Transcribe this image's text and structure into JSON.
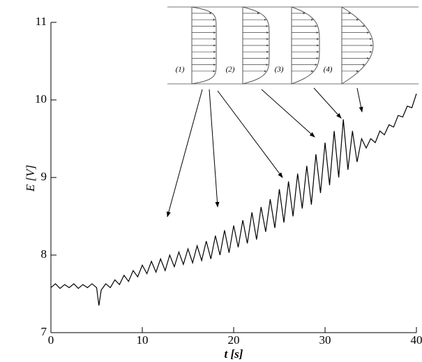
{
  "chart_data": {
    "type": "line",
    "xlabel": "t [s]",
    "ylabel": "E [V]",
    "x": [
      0,
      0.5,
      1,
      1.5,
      2,
      2.5,
      3,
      3.5,
      4,
      4.5,
      5,
      5.25,
      5.5,
      6,
      6.5,
      7,
      7.5,
      8,
      8.5,
      9,
      9.5,
      10,
      10.5,
      11,
      11.5,
      12,
      12.5,
      13,
      13.5,
      14,
      14.5,
      15,
      15.5,
      16,
      16.5,
      17,
      17.5,
      18,
      18.5,
      19,
      19.5,
      20,
      20.5,
      21,
      21.5,
      22,
      22.5,
      23,
      23.5,
      24,
      24.5,
      25,
      25.5,
      26,
      26.5,
      27,
      27.5,
      28,
      28.5,
      29,
      29.5,
      30,
      30.5,
      31,
      31.5,
      32,
      32.5,
      33,
      33.5,
      34,
      34.5,
      35,
      35.5,
      36,
      36.5,
      37,
      37.5,
      38,
      38.5,
      39,
      39.5,
      40
    ],
    "series": [
      {
        "color": "#000000",
        "values": [
          7.58,
          7.63,
          7.57,
          7.62,
          7.58,
          7.63,
          7.57,
          7.62,
          7.58,
          7.63,
          7.58,
          7.35,
          7.55,
          7.63,
          7.58,
          7.68,
          7.62,
          7.74,
          7.66,
          7.8,
          7.72,
          7.87,
          7.76,
          7.92,
          7.78,
          7.95,
          7.8,
          8.0,
          7.85,
          8.04,
          7.88,
          8.08,
          7.9,
          8.12,
          7.93,
          8.18,
          7.95,
          8.25,
          8.0,
          8.32,
          8.03,
          8.38,
          8.1,
          8.45,
          8.15,
          8.55,
          8.2,
          8.62,
          8.3,
          8.72,
          8.35,
          8.85,
          8.42,
          8.95,
          8.5,
          9.05,
          8.6,
          9.15,
          8.65,
          9.3,
          8.8,
          9.45,
          8.9,
          9.6,
          9.0,
          9.75,
          9.1,
          9.6,
          9.2,
          9.5,
          9.38,
          9.5,
          9.45,
          9.6,
          9.55,
          9.68,
          9.65,
          9.8,
          9.78,
          9.92,
          9.9,
          10.08
        ]
      }
    ],
    "xlim": [
      0,
      40
    ],
    "xticks": [
      0,
      10,
      20,
      30,
      40
    ],
    "ylim": [
      7,
      11
    ],
    "yticks": [
      7,
      8,
      9,
      10,
      11
    ],
    "annotations": [
      "(1)",
      "(2)",
      "(3)",
      "(4)"
    ]
  }
}
